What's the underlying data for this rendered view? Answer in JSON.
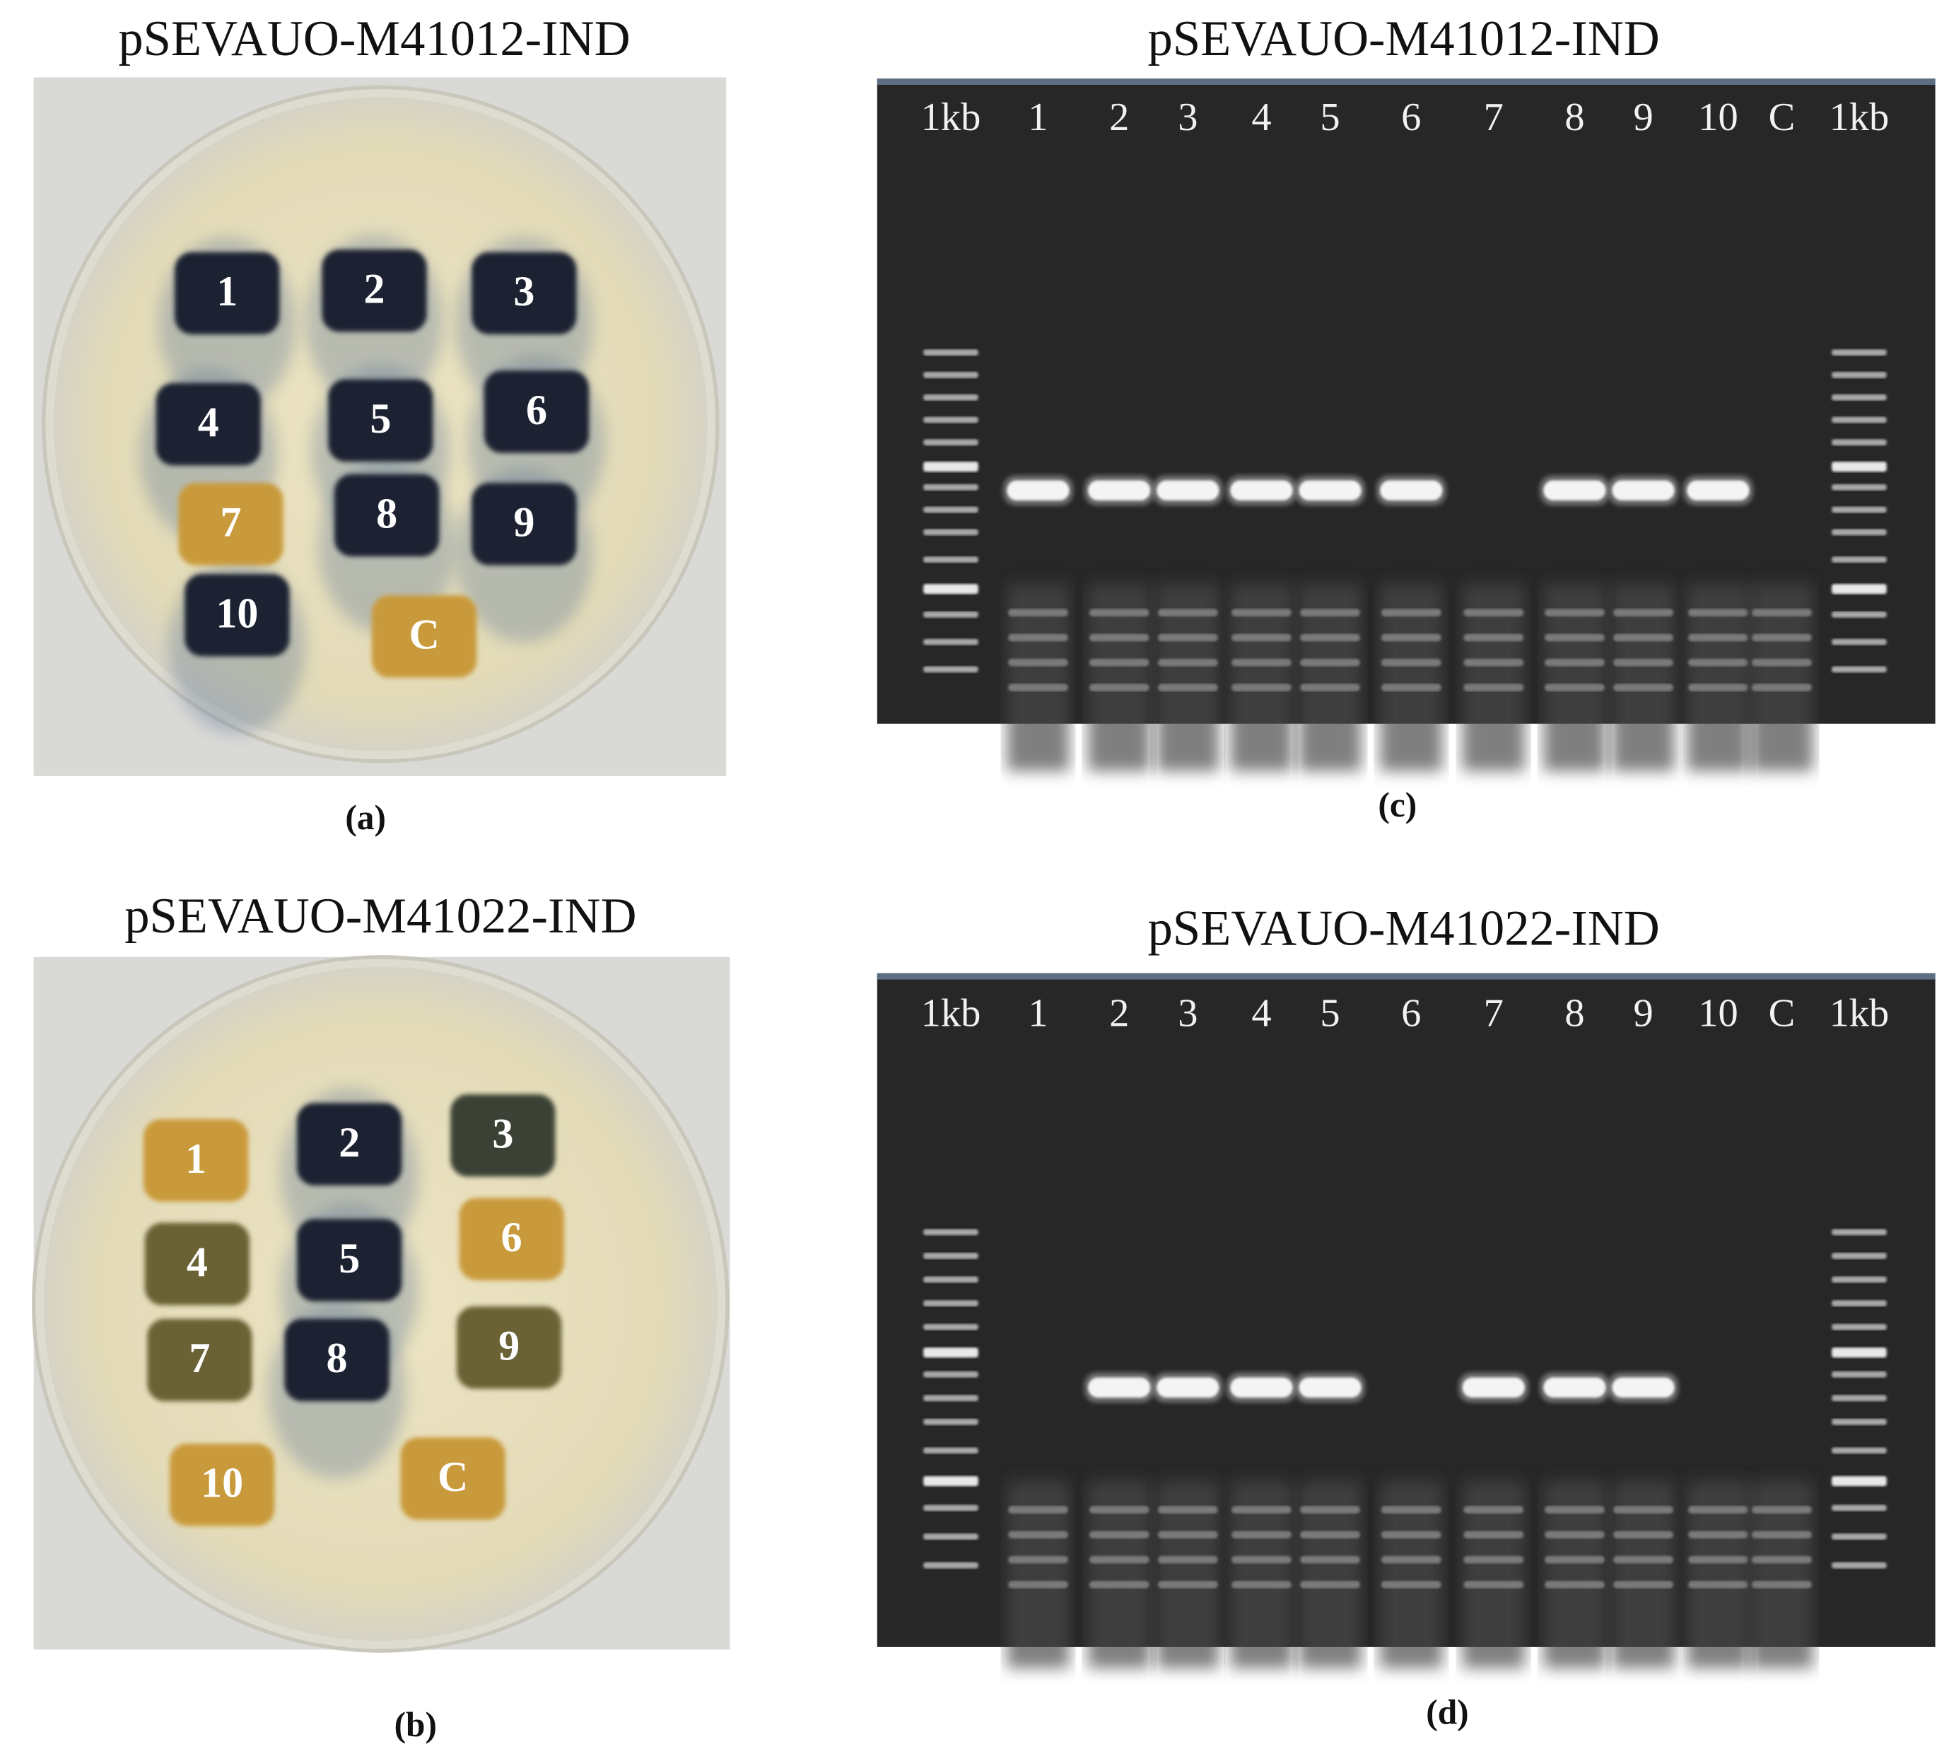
{
  "panel_a": {
    "title": "pSEVAUO-M41012-IND",
    "colonies": [
      "1",
      "2",
      "3",
      "4",
      "5",
      "6",
      "7",
      "8",
      "9",
      "10",
      "C"
    ],
    "caption": "(a)"
  },
  "panel_b": {
    "title": "pSEVAUO-M41022-IND",
    "colonies": [
      "1",
      "2",
      "3",
      "4",
      "5",
      "6",
      "7",
      "8",
      "9",
      "10",
      "C"
    ],
    "caption": "(b)"
  },
  "panel_c": {
    "title": "pSEVAUO-M41012-IND",
    "lanes": [
      "1kb",
      "1",
      "2",
      "3",
      "4",
      "5",
      "6",
      "7",
      "8",
      "9",
      "10",
      "C",
      "1kb"
    ],
    "caption": "(c)"
  },
  "panel_d": {
    "title": "pSEVAUO-M41022-IND",
    "lanes": [
      "1kb",
      "1",
      "2",
      "3",
      "4",
      "5",
      "6",
      "7",
      "8",
      "9",
      "10",
      "C",
      "1kb"
    ],
    "caption": "(d)"
  }
}
